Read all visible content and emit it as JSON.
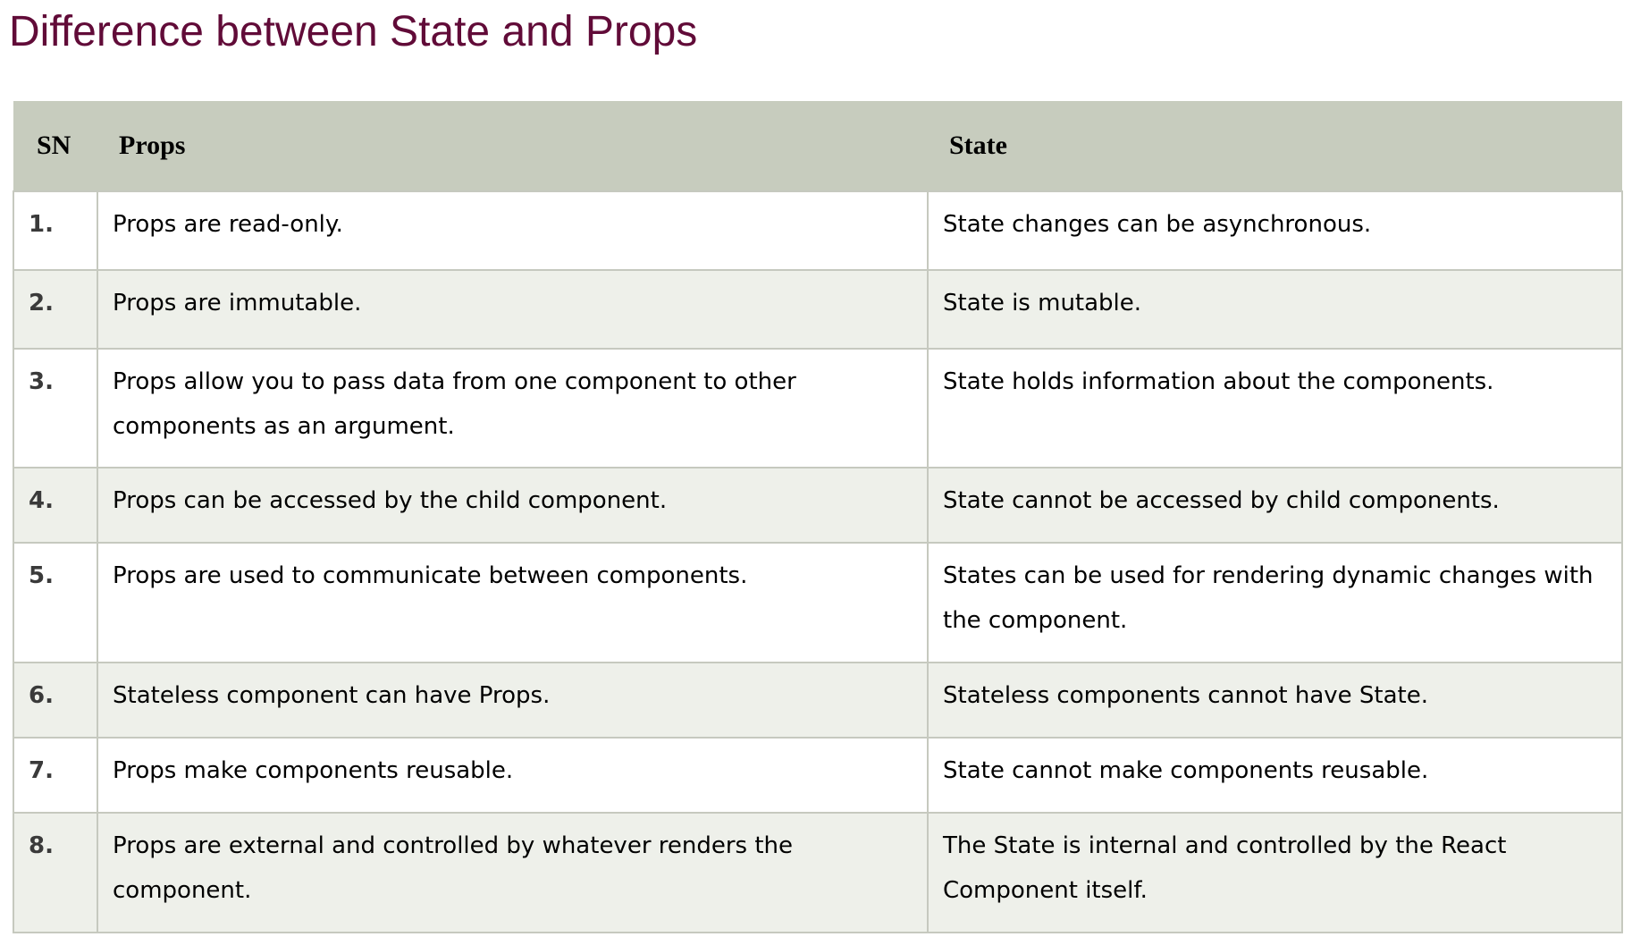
{
  "title": "Difference between State and Props",
  "table": {
    "headers": [
      "SN",
      "Props",
      "State"
    ],
    "rows": [
      {
        "sn": "1.",
        "props": "Props are read-only.",
        "state": "State changes can be asynchronous."
      },
      {
        "sn": "2.",
        "props": "Props are immutable.",
        "state": "State is mutable."
      },
      {
        "sn": "3.",
        "props": "Props allow you to pass data from one component to other components as an argument.",
        "state": "State holds information about the components."
      },
      {
        "sn": "4.",
        "props": "Props can be accessed by the child component.",
        "state": "State cannot be accessed by child components."
      },
      {
        "sn": "5.",
        "props": "Props are used to communicate between components.",
        "state": "States can be used for rendering dynamic changes with the component."
      },
      {
        "sn": "6.",
        "props": "Stateless component can have Props.",
        "state": "Stateless components cannot have State."
      },
      {
        "sn": "7.",
        "props": "Props make components reusable.",
        "state": "State cannot make components reusable."
      },
      {
        "sn": "8.",
        "props": "Props are external and controlled by whatever renders the component.",
        "state": "The State is internal and controlled by the React Component itself."
      }
    ]
  },
  "colors": {
    "title": "#610b38",
    "header_bg": "#c7ccbe",
    "row_alt_bg": "#eef0ea",
    "border": "#c6c9bf"
  }
}
